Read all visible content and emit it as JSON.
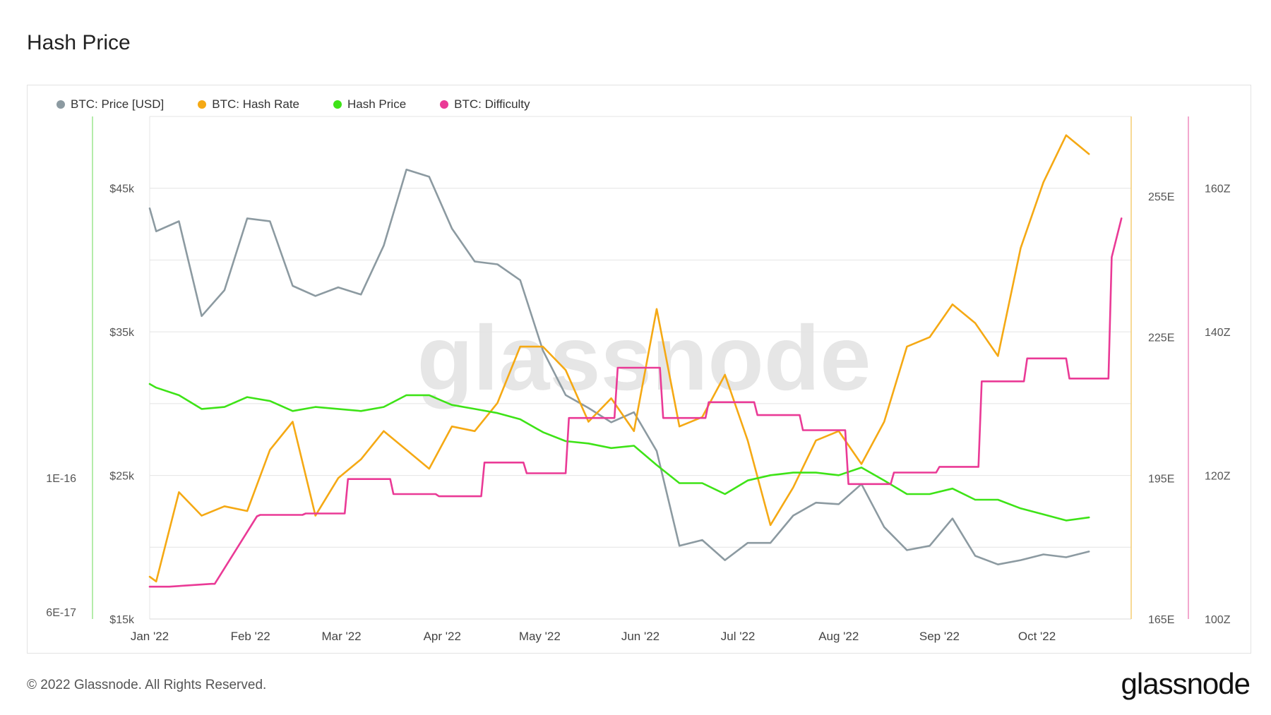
{
  "page": {
    "title": "Hash Price",
    "footer_copyright": "© 2022 Glassnode. All Rights Reserved.",
    "footer_logo": "glassnode",
    "watermark": "glassnode"
  },
  "legend": [
    {
      "label": "BTC: Price [USD]",
      "color": "#8c9aa1"
    },
    {
      "label": "BTC: Hash Rate",
      "color": "#f5a914"
    },
    {
      "label": "Hash Price",
      "color": "#3ee317"
    },
    {
      "label": "BTC: Difficulty",
      "color": "#ea3a96"
    }
  ],
  "chart_data": {
    "type": "line",
    "title": "Hash Price",
    "x_ticks": [
      "Jan '22",
      "Feb '22",
      "Mar '22",
      "Apr '22",
      "May '22",
      "Jun '22",
      "Jul '22",
      "Aug '22",
      "Sep '22",
      "Oct '22"
    ],
    "x_range": [
      "2022-01-01",
      "2022-10-30"
    ],
    "grid": true,
    "legend_position": "top-left",
    "axes": {
      "hash_price": {
        "ticks": [
          "1E-16",
          "6E-17"
        ],
        "scale": "log",
        "range": [
          6e-17,
          1e-16
        ],
        "color": "#3ee317"
      },
      "price": {
        "ticks": [
          "$45k",
          "$35k",
          "$25k",
          "$15k"
        ],
        "range": [
          15000,
          50000
        ]
      },
      "hash_rate": {
        "ticks": [
          "255E",
          "225E",
          "195E",
          "165E"
        ],
        "range": [
          165,
          272
        ]
      },
      "difficulty": {
        "ticks": [
          "160Z",
          "140Z",
          "120Z",
          "100Z"
        ],
        "range": [
          100,
          170
        ]
      }
    },
    "series": [
      {
        "name": "BTC: Price [USD]",
        "axis": "price",
        "color": "#8c9aa1",
        "x": [
          "2022-01-01",
          "2022-01-03",
          "2022-01-10",
          "2022-01-17",
          "2022-01-24",
          "2022-01-31",
          "2022-02-07",
          "2022-02-14",
          "2022-02-21",
          "2022-02-28",
          "2022-03-07",
          "2022-03-14",
          "2022-03-21",
          "2022-03-28",
          "2022-04-04",
          "2022-04-11",
          "2022-04-18",
          "2022-04-25",
          "2022-05-02",
          "2022-05-09",
          "2022-05-16",
          "2022-05-23",
          "2022-05-30",
          "2022-06-06",
          "2022-06-13",
          "2022-06-20",
          "2022-06-27",
          "2022-07-04",
          "2022-07-11",
          "2022-07-18",
          "2022-07-25",
          "2022-08-01",
          "2022-08-08",
          "2022-08-15",
          "2022-08-22",
          "2022-08-29",
          "2022-09-05",
          "2022-09-12",
          "2022-09-19",
          "2022-09-26",
          "2022-10-03",
          "2022-10-10",
          "2022-10-17"
        ],
        "y": [
          43600,
          42000,
          42700,
          36100,
          37900,
          42900,
          42700,
          38200,
          37500,
          38100,
          37600,
          41000,
          46300,
          45800,
          42200,
          39900,
          39700,
          38600,
          33700,
          30600,
          29700,
          28700,
          29400,
          26700,
          20100,
          20500,
          19100,
          20300,
          20300,
          22200,
          23100,
          23000,
          24400,
          21400,
          19800,
          20100,
          22000,
          19400,
          18800,
          19100,
          19500,
          19300,
          19700
        ]
      },
      {
        "name": "BTC: Hash Rate",
        "axis": "hash_rate",
        "color": "#f5a914",
        "x": [
          "2022-01-01",
          "2022-01-03",
          "2022-01-10",
          "2022-01-17",
          "2022-01-24",
          "2022-01-31",
          "2022-02-07",
          "2022-02-14",
          "2022-02-21",
          "2022-02-28",
          "2022-03-07",
          "2022-03-14",
          "2022-03-21",
          "2022-03-28",
          "2022-04-04",
          "2022-04-11",
          "2022-04-18",
          "2022-04-25",
          "2022-05-02",
          "2022-05-09",
          "2022-05-16",
          "2022-05-23",
          "2022-05-30",
          "2022-06-06",
          "2022-06-13",
          "2022-06-20",
          "2022-06-27",
          "2022-07-04",
          "2022-07-11",
          "2022-07-18",
          "2022-07-25",
          "2022-08-01",
          "2022-08-08",
          "2022-08-15",
          "2022-08-22",
          "2022-08-29",
          "2022-09-05",
          "2022-09-12",
          "2022-09-19",
          "2022-09-26",
          "2022-10-03",
          "2022-10-10",
          "2022-10-17"
        ],
        "y": [
          174,
          173,
          192,
          187,
          189,
          188,
          201,
          207,
          187,
          195,
          199,
          205,
          201,
          197,
          206,
          205,
          211,
          223,
          223,
          218,
          207,
          212,
          205,
          231,
          206,
          208,
          217,
          203,
          185,
          193,
          203,
          205,
          198,
          207,
          223,
          225,
          232,
          228,
          221,
          244,
          258,
          268,
          264
        ]
      },
      {
        "name": "Hash Price",
        "axis": "hash_price",
        "color": "#3ee317",
        "x": [
          "2022-01-01",
          "2022-01-03",
          "2022-01-10",
          "2022-01-17",
          "2022-01-24",
          "2022-01-31",
          "2022-02-07",
          "2022-02-14",
          "2022-02-21",
          "2022-02-28",
          "2022-03-07",
          "2022-03-14",
          "2022-03-21",
          "2022-03-28",
          "2022-04-04",
          "2022-04-11",
          "2022-04-18",
          "2022-04-25",
          "2022-05-02",
          "2022-05-09",
          "2022-05-16",
          "2022-05-23",
          "2022-05-30",
          "2022-06-06",
          "2022-06-13",
          "2022-06-20",
          "2022-06-27",
          "2022-07-04",
          "2022-07-11",
          "2022-07-18",
          "2022-07-25",
          "2022-08-01",
          "2022-08-08",
          "2022-08-15",
          "2022-08-22",
          "2022-08-29",
          "2022-09-05",
          "2022-09-12",
          "2022-09-19",
          "2022-09-26",
          "2022-10-03",
          "2022-10-10",
          "2022-10-17"
        ],
        "y": [
          1.43e-16,
          1.41e-16,
          1.37e-16,
          1.3e-16,
          1.31e-16,
          1.36e-16,
          1.34e-16,
          1.29e-16,
          1.31e-16,
          1.3e-16,
          1.29e-16,
          1.31e-16,
          1.37e-16,
          1.37e-16,
          1.32e-16,
          1.3e-16,
          1.28e-16,
          1.25e-16,
          1.19e-16,
          1.15e-16,
          1.14e-16,
          1.12e-16,
          1.13e-16,
          1.05e-16,
          9.8e-17,
          9.8e-17,
          9.4e-17,
          9.9e-17,
          1.01e-16,
          1.02e-16,
          1.02e-16,
          1.01e-16,
          1.04e-16,
          9.9e-17,
          9.4e-17,
          9.4e-17,
          9.6e-17,
          9.2e-17,
          9.2e-17,
          8.9e-17,
          8.7e-17,
          8.5e-17,
          8.6e-17
        ]
      },
      {
        "name": "BTC: Difficulty",
        "axis": "difficulty",
        "color": "#ea3a96",
        "x": [
          "2022-01-01",
          "2022-01-07",
          "2022-01-20",
          "2022-01-21",
          "2022-02-03",
          "2022-02-04",
          "2022-02-17",
          "2022-02-18",
          "2022-03-02",
          "2022-03-03",
          "2022-03-16",
          "2022-03-17",
          "2022-03-30",
          "2022-03-31",
          "2022-04-13",
          "2022-04-14",
          "2022-04-26",
          "2022-04-27",
          "2022-05-09",
          "2022-05-10",
          "2022-05-24",
          "2022-05-25",
          "2022-06-07",
          "2022-06-08",
          "2022-06-21",
          "2022-06-22",
          "2022-07-06",
          "2022-07-07",
          "2022-07-20",
          "2022-07-21",
          "2022-08-03",
          "2022-08-04",
          "2022-08-17",
          "2022-08-18",
          "2022-08-31",
          "2022-09-01",
          "2022-09-13",
          "2022-09-14",
          "2022-09-27",
          "2022-09-28",
          "2022-10-10",
          "2022-10-11",
          "2022-10-23",
          "2022-10-24",
          "2022-10-27"
        ],
        "y": [
          104.5,
          104.5,
          104.9,
          104.9,
          114.3,
          114.5,
          114.5,
          114.7,
          114.7,
          119.5,
          119.5,
          117.4,
          117.4,
          117.1,
          117.1,
          121.8,
          121.8,
          120.3,
          120.3,
          128.0,
          128.0,
          135.0,
          135.0,
          128.0,
          128.0,
          130.2,
          130.2,
          128.4,
          128.4,
          126.3,
          126.3,
          118.8,
          118.8,
          120.4,
          120.4,
          121.2,
          121.2,
          133.1,
          133.1,
          136.3,
          136.3,
          133.5,
          133.5,
          150.4,
          155.8
        ]
      }
    ]
  }
}
